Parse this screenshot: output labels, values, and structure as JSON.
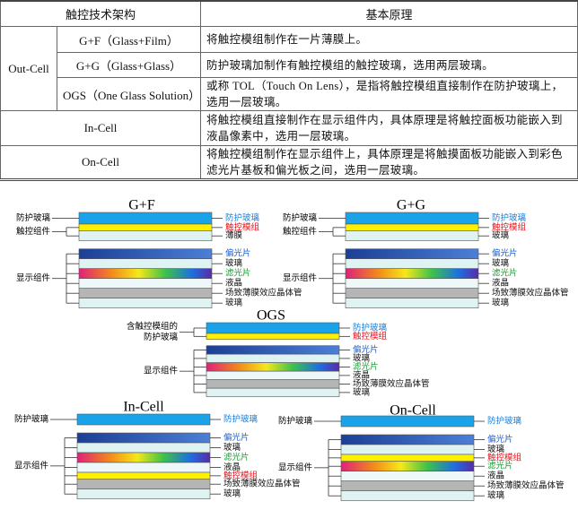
{
  "table": {
    "header": [
      "触控技术架构",
      "基本原理"
    ],
    "rows": [
      {
        "group": "Out-Cell",
        "name": "G+F（Glass+Film）",
        "principle": "将触控模组制作在一片薄膜上。"
      },
      {
        "name": "G+G（Glass+Glass）",
        "principle": "防护玻璃加制作有触控模组的触控玻璃，选用两层玻璃。"
      },
      {
        "name": "OGS（One Glass Solution）",
        "principle": "或称 TOL（Touch On Lens），是指将触控模组直接制作在防护玻璃上，选用一层玻璃。"
      },
      {
        "name": "In-Cell",
        "principle": "将触控模组直接制作在显示组件内，具体原理是将触控面板功能嵌入到液晶像素中，选用一层玻璃。"
      },
      {
        "name": "On-Cell",
        "principle": "将触控模组制作在显示组件上，具体原理是将触摸面板功能嵌入到彩色滤光片基板和偏光板之间，选用一层玻璃。"
      }
    ]
  },
  "diagrams": [
    {
      "title": "G+F",
      "left_labels": [
        {
          "lines": [
            "防护玻璃"
          ]
        },
        {
          "lines": [
            "触控组件"
          ]
        },
        {
          "lines": [
            "显示组件"
          ]
        }
      ],
      "right_labels": [
        "防护玻璃",
        "触控模组",
        "薄膜",
        "偏光片",
        "玻璃",
        "滤光片",
        "液晶",
        "场致薄膜效应晶体管",
        "玻璃"
      ]
    },
    {
      "title": "G+G",
      "left_labels": [
        {
          "lines": [
            "防护玻璃"
          ]
        },
        {
          "lines": [
            "触控组件"
          ]
        },
        {
          "lines": [
            "显示组件"
          ]
        }
      ],
      "right_labels": [
        "防护玻璃",
        "触控模组",
        "玻璃",
        "偏光片",
        "玻璃",
        "滤光片",
        "液晶",
        "场致薄膜效应晶体管",
        "玻璃"
      ]
    },
    {
      "title": "OGS",
      "left_labels": [
        {
          "lines": [
            "含触控模组的",
            "防护玻璃"
          ]
        },
        {
          "lines": [
            "显示组件"
          ]
        }
      ],
      "right_labels": [
        "防护玻璃",
        "触控模组",
        "偏光片",
        "玻璃",
        "滤光片",
        "液晶",
        "场致薄膜效应晶体管",
        "玻璃"
      ]
    },
    {
      "title": "In-Cell",
      "left_labels": [
        {
          "lines": [
            "防护玻璃"
          ]
        },
        {
          "lines": [
            "显示组件"
          ]
        }
      ],
      "right_labels": [
        "防护玻璃",
        "偏光片",
        "玻璃",
        "滤光片",
        "液晶",
        "触控模组",
        "场致薄膜效应晶体管",
        "玻璃"
      ]
    },
    {
      "title": "On-Cell",
      "left_labels": [
        {
          "lines": [
            "防护玻璃"
          ]
        },
        {
          "lines": [
            "显示组件"
          ]
        }
      ],
      "right_labels": [
        "防护玻璃",
        "偏光片",
        "玻璃",
        "触控模组",
        "滤光片",
        "液晶",
        "场致薄膜效应晶体管",
        "玻璃"
      ]
    }
  ]
}
